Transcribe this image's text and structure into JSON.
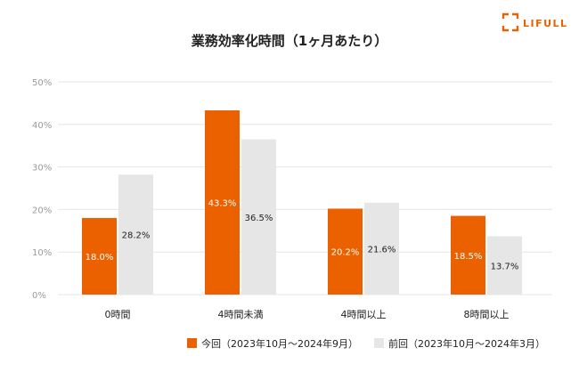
{
  "logo": {
    "text": "LIFULL",
    "color": "#EB6100"
  },
  "chart_data": {
    "type": "bar",
    "title": "業務効率化時間（1ヶ月あたり）",
    "xlabel": "",
    "ylabel": "",
    "ylim": [
      0,
      50
    ],
    "yticks": [
      "0%",
      "10%",
      "20%",
      "30%",
      "40%",
      "50%"
    ],
    "grid": true,
    "legend_position": "bottom",
    "categories": [
      "0時間",
      "4時間未満",
      "4時間以上",
      "8時間以上"
    ],
    "series": [
      {
        "name": "今回（2023年10月～2024年9月）",
        "color": "#EB6100",
        "label_color": "#ffffff",
        "values": [
          18.0,
          43.3,
          20.2,
          18.5
        ],
        "labels": [
          "18.0%",
          "43.3%",
          "20.2%",
          "18.5%"
        ]
      },
      {
        "name": "前回（2023年10月～2024年3月）",
        "color": "#E6E6E6",
        "label_color": "#222222",
        "values": [
          28.2,
          36.5,
          21.6,
          13.7
        ],
        "labels": [
          "28.2%",
          "36.5%",
          "21.6%",
          "13.7%"
        ]
      }
    ]
  }
}
